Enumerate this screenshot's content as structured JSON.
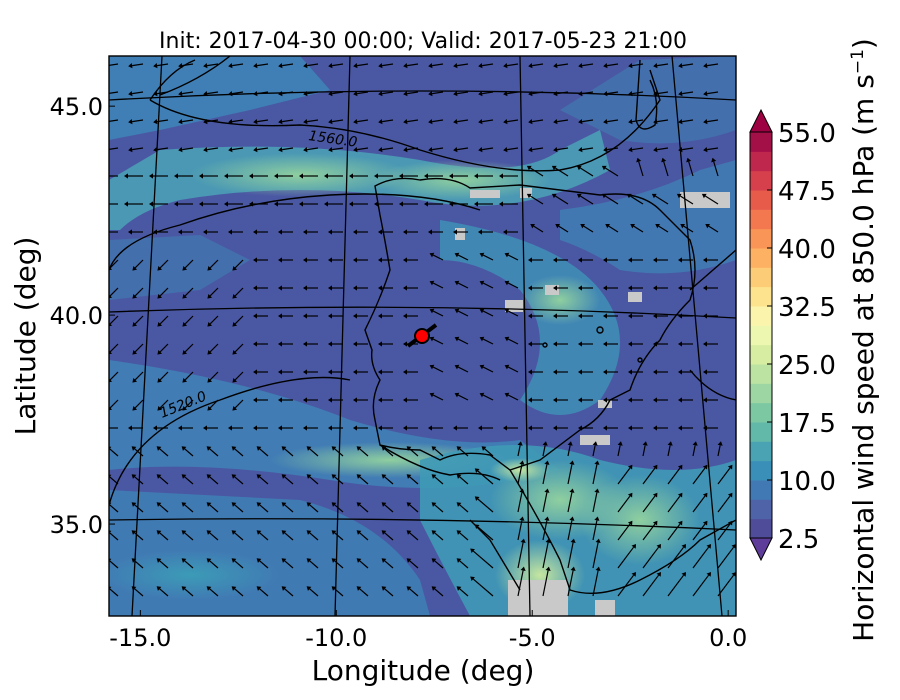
{
  "chart_data": {
    "type": "heatmap",
    "title": "Init: 2017-04-30 00:00; Valid: 2017-05-23 21:00",
    "xlabel": "Longitude (deg)",
    "ylabel": "Latitude (deg)",
    "xlim": [
      -15.8,
      0.2
    ],
    "ylim": [
      32.8,
      46.2
    ],
    "x_ticks": [
      {
        "value": -15.0,
        "label": "-15.0"
      },
      {
        "value": -10.0,
        "label": "-10.0"
      },
      {
        "value": -5.0,
        "label": "-5.0"
      },
      {
        "value": 0.0,
        "label": "0.0"
      }
    ],
    "y_ticks": [
      {
        "value": 35.0,
        "label": "35.0"
      },
      {
        "value": 40.0,
        "label": "40.0"
      },
      {
        "value": 45.0,
        "label": "45.0"
      }
    ],
    "colorbar": {
      "label_main": "Horizontal wind speed at 850.0 hPa (m s",
      "label_exp": "−1",
      "label_close": ")",
      "min": 2.5,
      "max": 55.0,
      "levels": [
        2.5,
        5.0,
        7.5,
        10.0,
        12.5,
        15.0,
        17.5,
        20.0,
        22.5,
        25.0,
        27.5,
        30.0,
        32.5,
        35.0,
        37.5,
        40.0,
        42.5,
        45.0,
        47.5,
        50.0,
        52.5,
        55.0
      ],
      "tick_labels": [
        {
          "value": 2.5,
          "label": "2.5"
        },
        {
          "value": 10.0,
          "label": "10.0"
        },
        {
          "value": 17.5,
          "label": "17.5"
        },
        {
          "value": 25.0,
          "label": "25.0"
        },
        {
          "value": 32.5,
          "label": "32.5"
        },
        {
          "value": 40.0,
          "label": "40.0"
        },
        {
          "value": 47.5,
          "label": "47.5"
        },
        {
          "value": 55.0,
          "label": "55.0"
        }
      ],
      "colors": [
        "#4f4d9a",
        "#4e63a8",
        "#4179b5",
        "#3a8fb8",
        "#4aa3b3",
        "#62b8a9",
        "#7cc8a3",
        "#9dd6a3",
        "#bce3a1",
        "#d7eda1",
        "#eef7b0",
        "#fbf4ad",
        "#fee38f",
        "#fdcc76",
        "#fdb163",
        "#f99556",
        "#f37850",
        "#e75b4b",
        "#d63f4c",
        "#c0274d",
        "#a30f47"
      ],
      "under_color": "#5e3c99",
      "over_color": "#9e0142"
    },
    "geopotential_contours": [
      {
        "label": "1560.0",
        "label_lon": -11.2,
        "label_lat": 43.9
      },
      {
        "label": "1520.0",
        "label_lon": -14.0,
        "label_lat": 37.5
      }
    ],
    "station": {
      "lon": -7.7,
      "lat": 39.4,
      "marker": "red-circle"
    }
  }
}
